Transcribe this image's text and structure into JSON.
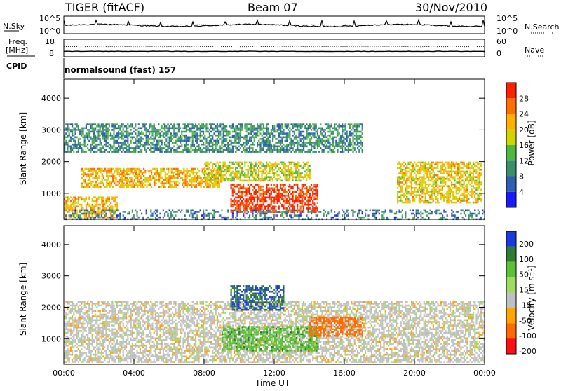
{
  "header": {
    "radar": "TIGER (fitACF)",
    "beam": "Beam 07",
    "date": "30/Nov/2010"
  },
  "noise_panel": {
    "left_label": "N.Sky",
    "right_label": "N.Search",
    "left_ticks": [
      "10^5",
      "10^0"
    ],
    "right_ticks": [
      "10^5",
      "10^0"
    ]
  },
  "freq_panel": {
    "left_label_1": "Freq.",
    "left_label_2": "[MHz]",
    "right_label": "Nave",
    "left_ticks": [
      "18",
      "8"
    ],
    "right_ticks": [
      "60",
      "0"
    ]
  },
  "cpid_panel": {
    "label": "CPID",
    "text": "normalsound (fast) 157"
  },
  "x_axis": {
    "label": "Time UT",
    "ticks": [
      "00:00",
      "04:00",
      "08:00",
      "12:00",
      "16:00",
      "20:00",
      "00:00"
    ],
    "hours": [
      0,
      4,
      8,
      12,
      16,
      20,
      24
    ]
  },
  "chart_data": [
    {
      "type": "heatmap",
      "name": "Power",
      "ylabel": "Slant Range [km]",
      "y_ticks": [
        1000,
        2000,
        3000,
        4000
      ],
      "ylim": [
        180,
        4600
      ],
      "xlim_hours": [
        0,
        24
      ],
      "colorbar": {
        "label": "Power [dB]",
        "ticks": [
          4,
          8,
          12,
          16,
          20,
          24,
          28
        ],
        "range": [
          0,
          32
        ],
        "colors": [
          "#1a1aff",
          "#2f5fb0",
          "#3a8f6a",
          "#4fb843",
          "#d2d400",
          "#ffb000",
          "#ff7000",
          "#ff2000"
        ]
      },
      "echo_regions": [
        {
          "t": [
            0.0,
            3.0
          ],
          "r": [
            250,
            900
          ],
          "power": 22
        },
        {
          "t": [
            1.0,
            9.0
          ],
          "r": [
            1200,
            1800
          ],
          "power": 22
        },
        {
          "t": [
            9.5,
            14.5
          ],
          "r": [
            400,
            1300
          ],
          "power": 30
        },
        {
          "t": [
            8.0,
            14.0
          ],
          "r": [
            1400,
            2000
          ],
          "power": 18
        },
        {
          "t": [
            19.0,
            23.8
          ],
          "r": [
            700,
            2000
          ],
          "power": 20
        },
        {
          "t": [
            0.0,
            24.0
          ],
          "r": [
            200,
            500
          ],
          "power": 8
        },
        {
          "t": [
            0.0,
            17.0
          ],
          "r": [
            2300,
            3200
          ],
          "power": 10
        }
      ]
    },
    {
      "type": "heatmap",
      "name": "Velocity",
      "ylabel": "Slant Range [km]",
      "y_ticks": [
        1000,
        2000,
        3000,
        4000
      ],
      "ylim": [
        180,
        4600
      ],
      "xlim_hours": [
        0,
        24
      ],
      "colorbar": {
        "label": "Velocity [m s⁻¹]",
        "ticks": [
          200,
          100,
          50,
          15,
          -15,
          -50,
          -100,
          -200
        ],
        "colors": [
          "#1a3ae0",
          "#2e7d32",
          "#5bc236",
          "#9ddc62",
          "#c0c0c0",
          "#ffa500",
          "#ff6a00",
          "#ff1010"
        ]
      },
      "echo_regions": [
        {
          "t": [
            0.0,
            24.0
          ],
          "r": [
            250,
            2200
          ],
          "velocity": 0
        },
        {
          "t": [
            9.0,
            14.5
          ],
          "r": [
            600,
            1400
          ],
          "velocity": 60
        },
        {
          "t": [
            9.5,
            12.5
          ],
          "r": [
            1900,
            2700
          ],
          "velocity": 150
        },
        {
          "t": [
            14.0,
            17.0
          ],
          "r": [
            1100,
            1700
          ],
          "velocity": -80
        }
      ]
    }
  ]
}
